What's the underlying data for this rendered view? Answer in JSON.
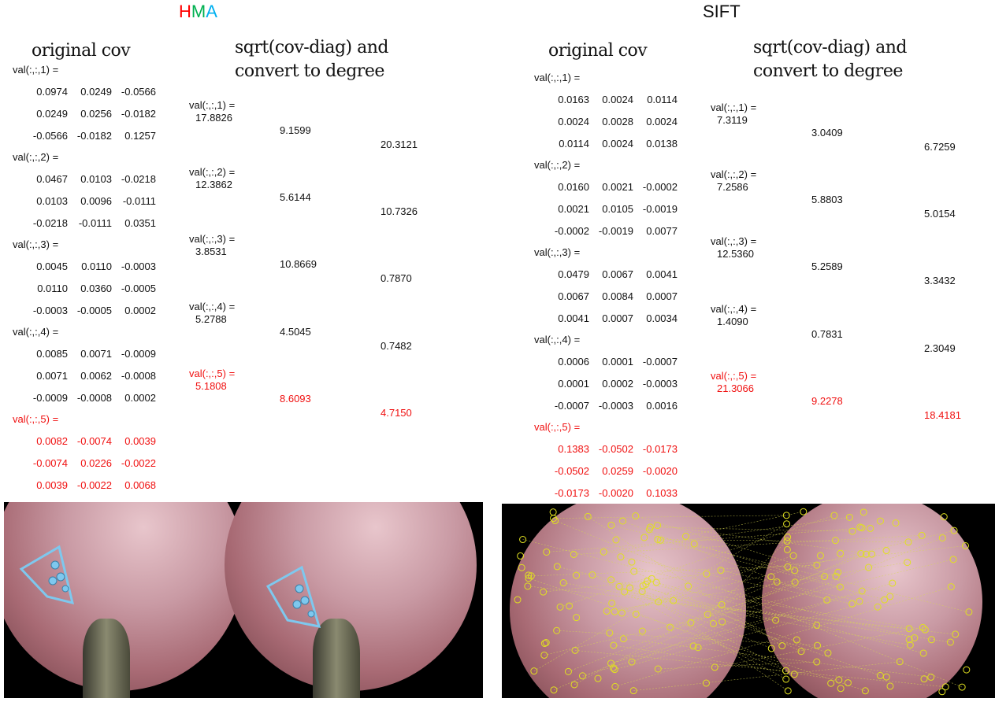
{
  "hma": {
    "title_letters": [
      {
        "t": "H",
        "color": "#ff0000"
      },
      {
        "t": "M",
        "color": "#00b050"
      },
      {
        "t": "A",
        "color": "#00b0f0"
      }
    ],
    "original_cov_heading": "original cov",
    "degree_heading_line1": "sqrt(cov-diag) and",
    "degree_heading_line2": "convert to degree",
    "cov": [
      {
        "label": "val(:,:,1) =",
        "rows": [
          [
            "0.0974",
            "0.0249",
            "-0.0566"
          ],
          [
            "0.0249",
            "0.0256",
            "-0.0182"
          ],
          [
            "-0.0566",
            "-0.0182",
            "0.1257"
          ]
        ]
      },
      {
        "label": "val(:,:,2) =",
        "rows": [
          [
            "0.0467",
            "0.0103",
            "-0.0218"
          ],
          [
            "0.0103",
            "0.0096",
            "-0.0111"
          ],
          [
            "-0.0218",
            "-0.0111",
            "0.0351"
          ]
        ]
      },
      {
        "label": "val(:,:,3) =",
        "rows": [
          [
            "0.0045",
            "0.0110",
            "-0.0003"
          ],
          [
            "0.0110",
            "0.0360",
            "-0.0005"
          ],
          [
            "-0.0003",
            "-0.0005",
            "0.0002"
          ]
        ]
      },
      {
        "label": "val(:,:,4) =",
        "rows": [
          [
            "0.0085",
            "0.0071",
            "-0.0009"
          ],
          [
            "0.0071",
            "0.0062",
            "-0.0008"
          ],
          [
            "-0.0009",
            "-0.0008",
            "0.0002"
          ]
        ]
      },
      {
        "label": "val(:,:,5) =",
        "rows": [
          [
            "0.0082",
            "-0.0074",
            "0.0039"
          ],
          [
            "-0.0074",
            "0.0226",
            "-0.0022"
          ],
          [
            "0.0039",
            "-0.0022",
            "0.0068"
          ]
        ],
        "highlight": true
      }
    ],
    "deg": [
      {
        "label": "val(:,:,1) =",
        "values": [
          "17.8826",
          "9.1599",
          "20.3121"
        ]
      },
      {
        "label": "val(:,:,2) =",
        "values": [
          "12.3862",
          "5.6144",
          "10.7326"
        ]
      },
      {
        "label": "val(:,:,3) =",
        "values": [
          "3.8531",
          "10.8669",
          "0.7870"
        ]
      },
      {
        "label": "val(:,:,4) =",
        "values": [
          "5.2788",
          "4.5045",
          "0.7482"
        ]
      },
      {
        "label": "val(:,:,5) =",
        "values": [
          "5.1808",
          "8.6093",
          "4.7150"
        ],
        "highlight": true
      }
    ]
  },
  "sift": {
    "title": "SIFT",
    "original_cov_heading": "original cov",
    "degree_heading_line1": "sqrt(cov-diag) and",
    "degree_heading_line2": "convert to degree",
    "cov": [
      {
        "label": "val(:,:,1) =",
        "rows": [
          [
            "0.0163",
            "0.0024",
            "0.0114"
          ],
          [
            "0.0024",
            "0.0028",
            "0.0024"
          ],
          [
            "0.0114",
            "0.0024",
            "0.0138"
          ]
        ]
      },
      {
        "label": "val(:,:,2) =",
        "rows": [
          [
            "0.0160",
            "0.0021",
            "-0.0002"
          ],
          [
            "0.0021",
            "0.0105",
            "-0.0019"
          ],
          [
            "-0.0002",
            "-0.0019",
            "0.0077"
          ]
        ]
      },
      {
        "label": "val(:,:,3) =",
        "rows": [
          [
            "0.0479",
            "0.0067",
            "0.0041"
          ],
          [
            "0.0067",
            "0.0084",
            "0.0007"
          ],
          [
            "0.0041",
            "0.0007",
            "0.0034"
          ]
        ]
      },
      {
        "label": "val(:,:,4) =",
        "rows": [
          [
            "0.0006",
            "0.0001",
            "-0.0007"
          ],
          [
            "0.0001",
            "0.0002",
            "-0.0003"
          ],
          [
            "-0.0007",
            "-0.0003",
            "0.0016"
          ]
        ]
      },
      {
        "label": "val(:,:,5) =",
        "rows": [
          [
            "0.1383",
            "-0.0502",
            "-0.0173"
          ],
          [
            "-0.0502",
            "0.0259",
            "-0.0020"
          ],
          [
            "-0.0173",
            "-0.0020",
            "0.1033"
          ]
        ],
        "highlight": true
      }
    ],
    "deg": [
      {
        "label": "val(:,:,1) =",
        "values": [
          "7.3119",
          "3.0409",
          "6.7259"
        ]
      },
      {
        "label": "val(:,:,2) =",
        "values": [
          "7.2586",
          "5.8803",
          "5.0154"
        ]
      },
      {
        "label": "val(:,:,3) =",
        "values": [
          "12.5360",
          "5.2589",
          "3.3432"
        ]
      },
      {
        "label": "val(:,:,4) =",
        "values": [
          "1.4090",
          "0.7831",
          "2.3049"
        ]
      },
      {
        "label": "val(:,:,5) =",
        "values": [
          "21.3066",
          "9.2278",
          "18.4181"
        ],
        "highlight": true
      }
    ]
  },
  "colors": {
    "highlight": "#f01010",
    "hma_overlay": "#7ec8ee",
    "sift_overlay": "#e0e020"
  }
}
